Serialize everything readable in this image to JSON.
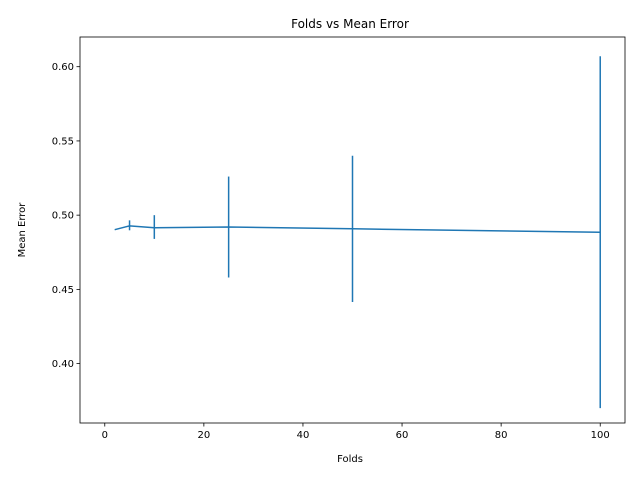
{
  "chart_data": {
    "type": "line",
    "title": "Folds vs Mean Error",
    "xlabel": "Folds",
    "ylabel": "Mean Error",
    "xlim": [
      -5,
      105
    ],
    "ylim": [
      0.36,
      0.62
    ],
    "xticks": [
      0,
      20,
      40,
      60,
      80,
      100
    ],
    "yticks": [
      0.4,
      0.45,
      0.5,
      0.55,
      0.6
    ],
    "grid": false,
    "legend": "none",
    "series": [
      {
        "color": "#1f77b4",
        "x": [
          2,
          5,
          10,
          25,
          50,
          100
        ],
        "y": [
          0.4902,
          0.4928,
          0.4915,
          0.492,
          0.4908,
          0.4885
        ],
        "error_low": [
          0.4902,
          0.4898,
          0.484,
          0.458,
          0.4415,
          0.37
        ],
        "error_high": [
          0.4902,
          0.4965,
          0.5,
          0.526,
          0.54,
          0.607
        ]
      }
    ]
  }
}
